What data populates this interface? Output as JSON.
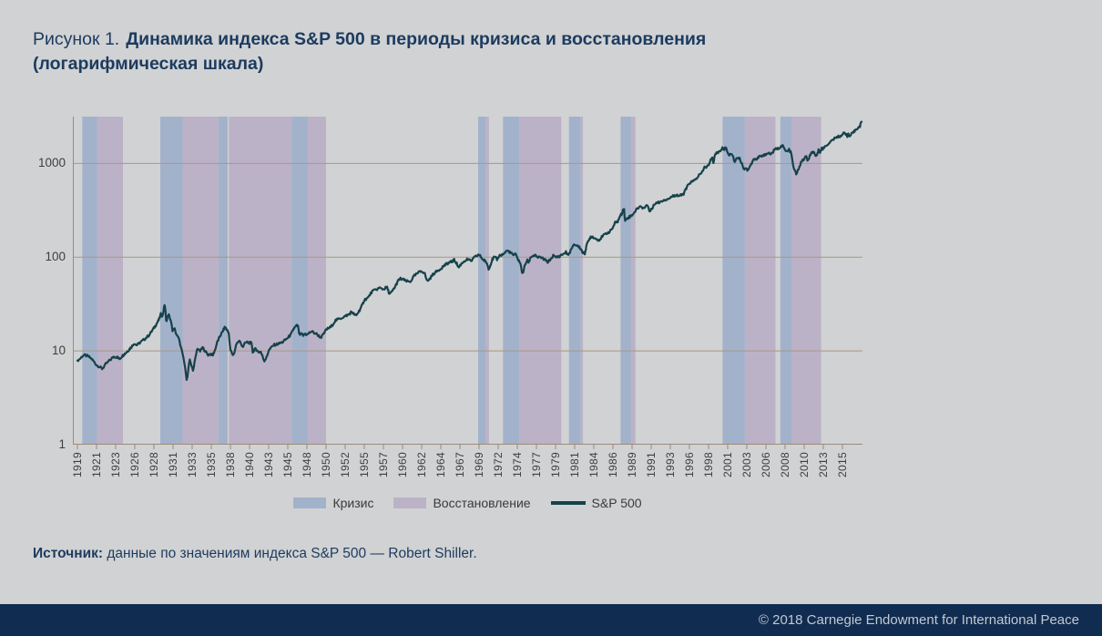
{
  "page": {
    "background": "#d1d2d4"
  },
  "title": {
    "figure_label": "Рисунок 1.",
    "text": "Динамика индекса S&P 500 в периоды кризиса и восстановления",
    "line2": "(логарифмическая шкала)"
  },
  "legend": {
    "items": [
      {
        "type": "crisis",
        "label": "Кризис"
      },
      {
        "type": "recovery",
        "label": "Восстановление"
      },
      {
        "type": "line",
        "label": "S&P 500"
      }
    ]
  },
  "source": {
    "label": "Источник:",
    "text": " данные по значениям индекса S&P 500 — Robert Shiller."
  },
  "footer": {
    "text": "© 2018 Carnegie Endowment for International Peace"
  },
  "chart_data": {
    "type": "line",
    "title": "Динамика индекса S&P 500 в периоды кризиса и восстановления (логарифмическая шкала)",
    "series_name": "S&P 500",
    "y_scale": "log",
    "y_ticks": [
      1,
      10,
      100,
      1000
    ],
    "ylim": [
      1,
      3162
    ],
    "x_range": [
      1919,
      2018
    ],
    "grid": "horizontal",
    "legend_position": "bottom",
    "x_tick_years": [
      1919,
      1921,
      1923,
      1926,
      1928,
      1931,
      1933,
      1935,
      1938,
      1940,
      1943,
      1945,
      1948,
      1950,
      1952,
      1955,
      1957,
      1960,
      1962,
      1964,
      1967,
      1969,
      1972,
      1974,
      1977,
      1979,
      1981,
      1984,
      1986,
      1989,
      1991,
      1993,
      1996,
      1998,
      2001,
      2003,
      2006,
      2008,
      2010,
      2013,
      2015
    ],
    "bands": [
      {
        "type": "crisis",
        "from": 1919.5,
        "to": 1921.05
      },
      {
        "type": "recovery",
        "from": 1921.05,
        "to": 1924.15
      },
      {
        "type": "crisis",
        "from": 1929.0,
        "to": 1932.0
      },
      {
        "type": "recovery",
        "from": 1932.0,
        "to": 1936.15
      },
      {
        "type": "crisis",
        "from": 1936.15,
        "to": 1937.55
      },
      {
        "type": "recovery",
        "from": 1937.75,
        "to": 1945.6
      },
      {
        "type": "crisis",
        "from": 1945.6,
        "to": 1948.1
      },
      {
        "type": "recovery",
        "from": 1948.1,
        "to": 1950.0
      },
      {
        "type": "crisis",
        "from": 1968.9,
        "to": 1970.0
      },
      {
        "type": "recovery",
        "from": 1970.0,
        "to": 1970.55
      },
      {
        "type": "crisis",
        "from": 1972.5,
        "to": 1974.3
      },
      {
        "type": "recovery",
        "from": 1974.3,
        "to": 1979.6
      },
      {
        "type": "crisis",
        "from": 1980.4,
        "to": 1981.95
      },
      {
        "type": "recovery",
        "from": 1981.95,
        "to": 1982.3
      },
      {
        "type": "crisis",
        "from": 1987.2,
        "to": 1988.9
      },
      {
        "type": "recovery",
        "from": 1988.9,
        "to": 1989.35
      },
      {
        "type": "crisis",
        "from": 2000.2,
        "to": 2002.8
      },
      {
        "type": "recovery",
        "from": 2002.8,
        "to": 2007.0
      },
      {
        "type": "crisis",
        "from": 2007.5,
        "to": 2008.7
      },
      {
        "type": "recovery",
        "from": 2008.7,
        "to": 2012.65
      }
    ],
    "sp500_points": [
      [
        1919.0,
        7.9
      ],
      [
        1919.3,
        8.3
      ],
      [
        1919.6,
        9.0
      ],
      [
        1919.9,
        8.9
      ],
      [
        1920.1,
        8.8
      ],
      [
        1920.5,
        8.2
      ],
      [
        1920.8,
        7.5
      ],
      [
        1921.0,
        7.1
      ],
      [
        1921.6,
        6.45
      ],
      [
        1922.0,
        7.3
      ],
      [
        1922.8,
        8.7
      ],
      [
        1923.2,
        8.6
      ],
      [
        1923.6,
        8.2
      ],
      [
        1924.0,
        8.8
      ],
      [
        1924.9,
        10.0
      ],
      [
        1925.5,
        11.1
      ],
      [
        1925.9,
        12.1
      ],
      [
        1926.2,
        11.5
      ],
      [
        1926.6,
        12.4
      ],
      [
        1927.0,
        13.3
      ],
      [
        1927.5,
        14.8
      ],
      [
        1928.0,
        17.5
      ],
      [
        1928.4,
        19.4
      ],
      [
        1928.8,
        21.6
      ],
      [
        1929.1,
        24.9
      ],
      [
        1929.35,
        23.2
      ],
      [
        1929.67,
        31.3
      ],
      [
        1929.8,
        28.0
      ],
      [
        1929.92,
        20.6
      ],
      [
        1930.1,
        22.5
      ],
      [
        1930.3,
        24.5
      ],
      [
        1930.6,
        21.5
      ],
      [
        1930.95,
        16.2
      ],
      [
        1931.15,
        17.2
      ],
      [
        1931.4,
        14.3
      ],
      [
        1931.55,
        14.8
      ],
      [
        1931.75,
        11.5
      ],
      [
        1931.95,
        9.7
      ],
      [
        1932.1,
        8.5
      ],
      [
        1932.45,
        4.77
      ],
      [
        1932.65,
        7.2
      ],
      [
        1932.75,
        8.0
      ],
      [
        1932.95,
        6.8
      ],
      [
        1933.12,
        6.2
      ],
      [
        1933.3,
        8.0
      ],
      [
        1933.55,
        10.9
      ],
      [
        1933.8,
        9.8
      ],
      [
        1934.1,
        10.9
      ],
      [
        1934.4,
        9.8
      ],
      [
        1934.65,
        9.1
      ],
      [
        1934.95,
        9.3
      ],
      [
        1935.2,
        8.9
      ],
      [
        1935.55,
        10.1
      ],
      [
        1935.95,
        12.5
      ],
      [
        1936.4,
        14.5
      ],
      [
        1936.8,
        16.2
      ],
      [
        1937.15,
        18.1
      ],
      [
        1937.5,
        16.6
      ],
      [
        1937.75,
        15.5
      ],
      [
        1937.95,
        10.6
      ],
      [
        1938.25,
        8.9
      ],
      [
        1938.45,
        9.8
      ],
      [
        1938.6,
        11.9
      ],
      [
        1938.95,
        12.8
      ],
      [
        1939.3,
        11.0
      ],
      [
        1939.55,
        12.2
      ],
      [
        1939.75,
        12.4
      ],
      [
        1940.0,
        12.2
      ],
      [
        1940.35,
        12.1
      ],
      [
        1940.5,
        9.7
      ],
      [
        1940.75,
        10.3
      ],
      [
        1941.0,
        10.5
      ],
      [
        1941.4,
        9.7
      ],
      [
        1941.75,
        9.8
      ],
      [
        1942.0,
        8.9
      ],
      [
        1942.3,
        7.84
      ],
      [
        1942.7,
        8.6
      ],
      [
        1943.0,
        10.1
      ],
      [
        1943.5,
        11.5
      ],
      [
        1944.0,
        11.9
      ],
      [
        1944.5,
        12.5
      ],
      [
        1945.0,
        13.8
      ],
      [
        1945.5,
        15.0
      ],
      [
        1945.95,
        17.4
      ],
      [
        1946.4,
        18.6
      ],
      [
        1946.6,
        18.4
      ],
      [
        1946.8,
        14.8
      ],
      [
        1947.1,
        15.2
      ],
      [
        1947.4,
        14.6
      ],
      [
        1947.75,
        15.3
      ],
      [
        1948.0,
        14.8
      ],
      [
        1948.45,
        16.2
      ],
      [
        1948.8,
        15.5
      ],
      [
        1949.0,
        15.2
      ],
      [
        1949.45,
        13.9
      ],
      [
        1949.8,
        15.3
      ],
      [
        1950.0,
        16.9
      ],
      [
        1950.5,
        18.0
      ],
      [
        1951.0,
        21.2
      ],
      [
        1951.4,
        22.0
      ],
      [
        1951.8,
        23.0
      ],
      [
        1952.2,
        23.9
      ],
      [
        1952.6,
        24.5
      ],
      [
        1953.0,
        26.2
      ],
      [
        1953.3,
        25.0
      ],
      [
        1953.7,
        23.7
      ],
      [
        1954.0,
        25.5
      ],
      [
        1954.5,
        29.0
      ],
      [
        1955.0,
        35.0
      ],
      [
        1955.4,
        37.0
      ],
      [
        1955.8,
        43.0
      ],
      [
        1956.2,
        45.0
      ],
      [
        1956.6,
        47.0
      ],
      [
        1957.0,
        45.5
      ],
      [
        1957.55,
        48.0
      ],
      [
        1957.95,
        40.3
      ],
      [
        1958.3,
        42.5
      ],
      [
        1958.8,
        48.0
      ],
      [
        1959.3,
        56.0
      ],
      [
        1959.6,
        59.0
      ],
      [
        1960.0,
        58.0
      ],
      [
        1960.4,
        55.5
      ],
      [
        1960.8,
        54.5
      ],
      [
        1961.2,
        63.0
      ],
      [
        1961.95,
        71.7
      ],
      [
        1962.3,
        68.0
      ],
      [
        1962.55,
        55.6
      ],
      [
        1962.8,
        58.0
      ],
      [
        1963.2,
        66.0
      ],
      [
        1963.7,
        72.0
      ],
      [
        1964.2,
        78.0
      ],
      [
        1964.7,
        83.0
      ],
      [
        1965.2,
        87.0
      ],
      [
        1965.7,
        89.5
      ],
      [
        1966.1,
        93.3
      ],
      [
        1966.45,
        87.0
      ],
      [
        1966.8,
        77.1
      ],
      [
        1967.1,
        84.0
      ],
      [
        1967.45,
        91.0
      ],
      [
        1967.8,
        95.0
      ],
      [
        1968.15,
        90.5
      ],
      [
        1968.5,
        99.0
      ],
      [
        1968.95,
        106.5
      ],
      [
        1969.3,
        101.0
      ],
      [
        1969.6,
        94.0
      ],
      [
        1969.95,
        91.0
      ],
      [
        1970.2,
        87.0
      ],
      [
        1970.5,
        75.7
      ],
      [
        1970.8,
        83.0
      ],
      [
        1971.05,
        93.5
      ],
      [
        1971.35,
        100.0
      ],
      [
        1971.65,
        97.5
      ],
      [
        1971.85,
        94.2
      ],
      [
        1972.1,
        104.0
      ],
      [
        1972.5,
        107.0
      ],
      [
        1972.95,
        118.0
      ],
      [
        1973.3,
        112.0
      ],
      [
        1973.55,
        105.0
      ],
      [
        1973.8,
        108.0
      ],
      [
        1974.05,
        96.0
      ],
      [
        1974.35,
        90.0
      ],
      [
        1974.6,
        79.0
      ],
      [
        1974.78,
        67.1
      ],
      [
        1975.0,
        72.0
      ],
      [
        1975.2,
        83.0
      ],
      [
        1975.55,
        92.5
      ],
      [
        1975.8,
        88.0
      ],
      [
        1976.1,
        100.9
      ],
      [
        1976.45,
        103.0
      ],
      [
        1976.75,
        104.5
      ],
      [
        1977.1,
        100.0
      ],
      [
        1977.5,
        99.0
      ],
      [
        1977.8,
        95.0
      ],
      [
        1978.2,
        88.7
      ],
      [
        1978.55,
        97.0
      ],
      [
        1978.75,
        103.9
      ],
      [
        1979.0,
        99.7
      ],
      [
        1979.35,
        102.0
      ],
      [
        1979.8,
        108.0
      ],
      [
        1980.1,
        113.5
      ],
      [
        1980.3,
        104.0
      ],
      [
        1980.6,
        119.0
      ],
      [
        1980.95,
        135.7
      ],
      [
        1981.3,
        134.4
      ],
      [
        1981.6,
        130.0
      ],
      [
        1981.95,
        123.0
      ],
      [
        1982.3,
        111.0
      ],
      [
        1982.6,
        109.7
      ],
      [
        1982.85,
        135.0
      ],
      [
        1983.1,
        145.0
      ],
      [
        1983.5,
        166.0
      ],
      [
        1983.9,
        165.0
      ],
      [
        1984.2,
        157.0
      ],
      [
        1984.55,
        153.0
      ],
      [
        1984.9,
        166.0
      ],
      [
        1985.3,
        180.0
      ],
      [
        1985.7,
        188.0
      ],
      [
        1986.0,
        208.2
      ],
      [
        1986.3,
        232.0
      ],
      [
        1986.6,
        237.0
      ],
      [
        1986.8,
        243.0
      ],
      [
        1987.1,
        274.0
      ],
      [
        1987.4,
        292.0
      ],
      [
        1987.62,
        329.4
      ],
      [
        1987.78,
        318.0
      ],
      [
        1987.88,
        245.0
      ],
      [
        1988.05,
        250.5
      ],
      [
        1988.3,
        262.0
      ],
      [
        1988.6,
        270.0
      ],
      [
        1988.9,
        277.0
      ],
      [
        1989.1,
        290.0
      ],
      [
        1989.45,
        320.0
      ],
      [
        1989.75,
        347.3
      ],
      [
        1990.05,
        339.0
      ],
      [
        1990.25,
        336.0
      ],
      [
        1990.45,
        355.0
      ],
      [
        1990.6,
        360.0
      ],
      [
        1990.85,
        307.1
      ],
      [
        1991.1,
        330.0
      ],
      [
        1991.3,
        373.0
      ],
      [
        1991.6,
        380.0
      ],
      [
        1991.95,
        388.5
      ],
      [
        1992.3,
        408.0
      ],
      [
        1992.6,
        415.0
      ],
      [
        1992.95,
        431.0
      ],
      [
        1993.3,
        447.0
      ],
      [
        1993.6,
        450.0
      ],
      [
        1993.95,
        466.0
      ],
      [
        1994.25,
        450.9
      ],
      [
        1994.55,
        454.8
      ],
      [
        1994.85,
        462.0
      ],
      [
        1995.1,
        478.0
      ],
      [
        1995.5,
        540.0
      ],
      [
        1995.95,
        614.6
      ],
      [
        1996.3,
        640.0
      ],
      [
        1996.6,
        668.5
      ],
      [
        1996.95,
        740.0
      ],
      [
        1997.3,
        790.0
      ],
      [
        1997.6,
        925.3
      ],
      [
        1997.8,
        915.0
      ],
      [
        1998.1,
        980.0
      ],
      [
        1998.35,
        1100.0
      ],
      [
        1998.55,
        1150.0
      ],
      [
        1998.78,
        1017.0
      ],
      [
        1999.0,
        1248.8
      ],
      [
        1999.3,
        1300.0
      ],
      [
        1999.6,
        1330.0
      ],
      [
        1999.8,
        1370.0
      ],
      [
        2000.05,
        1425.0
      ],
      [
        2000.25,
        1461.0
      ],
      [
        2000.45,
        1420.0
      ],
      [
        2000.65,
        1485.5
      ],
      [
        2000.95,
        1330.9
      ],
      [
        2001.15,
        1240.0
      ],
      [
        2001.45,
        1270.4
      ],
      [
        2001.72,
        1044.6
      ],
      [
        2001.95,
        1144.9
      ],
      [
        2002.2,
        1153.8
      ],
      [
        2002.45,
        1020.0
      ],
      [
        2002.72,
        867.8
      ],
      [
        2002.9,
        909.9
      ],
      [
        2003.12,
        837.6
      ],
      [
        2003.45,
        935.0
      ],
      [
        2003.7,
        990.0
      ],
      [
        2003.95,
        1058.2
      ],
      [
        2004.2,
        1133.5
      ],
      [
        2004.6,
        1104.2
      ],
      [
        2004.95,
        1199.2
      ],
      [
        2005.3,
        1181.4
      ],
      [
        2005.6,
        1210.0
      ],
      [
        2005.95,
        1262.0
      ],
      [
        2006.3,
        1290.0
      ],
      [
        2006.55,
        1260.0
      ],
      [
        2006.95,
        1416.4
      ],
      [
        2007.3,
        1440.0
      ],
      [
        2007.5,
        1520.0
      ],
      [
        2007.78,
        1539.7
      ],
      [
        2008.0,
        1378.8
      ],
      [
        2008.2,
        1331.3
      ],
      [
        2008.42,
        1403.2
      ],
      [
        2008.65,
        1282.8
      ],
      [
        2008.82,
        968.8
      ],
      [
        2008.95,
        877.6
      ],
      [
        2009.17,
        757.1
      ],
      [
        2009.45,
        902.4
      ],
      [
        2009.72,
        1044.5
      ],
      [
        2009.95,
        1110.4
      ],
      [
        2010.3,
        1197.3
      ],
      [
        2010.52,
        1083.4
      ],
      [
        2010.72,
        1087.3
      ],
      [
        2010.95,
        1241.5
      ],
      [
        2011.3,
        1331.5
      ],
      [
        2011.55,
        1287.3
      ],
      [
        2011.78,
        1173.9
      ],
      [
        2011.9,
        1207.2
      ],
      [
        2012.1,
        1300.6
      ],
      [
        2012.28,
        1403.3
      ],
      [
        2012.45,
        1317.8
      ],
      [
        2012.72,
        1443.4
      ],
      [
        2012.9,
        1422.3
      ],
      [
        2013.05,
        1480.4
      ],
      [
        2013.38,
        1597.6
      ],
      [
        2013.6,
        1606.3
      ],
      [
        2013.95,
        1807.8
      ],
      [
        2014.1,
        1822.4
      ],
      [
        2014.3,
        1864.0
      ],
      [
        2014.55,
        1947.1
      ],
      [
        2014.78,
        1937.3
      ],
      [
        2014.95,
        2054.3
      ],
      [
        2015.15,
        2082.2
      ],
      [
        2015.4,
        2111.9
      ],
      [
        2015.68,
        2039.9
      ],
      [
        2015.78,
        1944.4
      ],
      [
        2015.95,
        2054.1
      ],
      [
        2016.12,
        1918.6
      ],
      [
        2016.3,
        2021.9
      ],
      [
        2016.55,
        2083.9
      ],
      [
        2016.78,
        2157.0
      ],
      [
        2016.95,
        2246.6
      ],
      [
        2017.2,
        2357.0
      ],
      [
        2017.45,
        2395.3
      ],
      [
        2017.7,
        2454.1
      ],
      [
        2017.9,
        2664.3
      ],
      [
        2018.0,
        2789.8
      ]
    ],
    "colors": {
      "line": "#16424a",
      "crisis": "#a3b2cb",
      "recovery": "#bcb2c7",
      "grid": "#a89882",
      "axis": "#9c8b79",
      "tick_text": "#3e3e3e",
      "navy": "#1c3b5e",
      "footer_bg": "#102c50"
    }
  }
}
